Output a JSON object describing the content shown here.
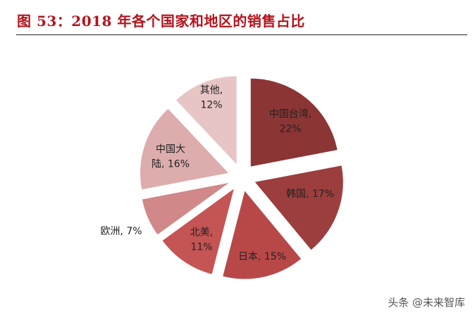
{
  "title": "图  53：2018 年各个国家和地区的销售占比",
  "watermark": "头条 @未来智库",
  "chart_data": {
    "type": "pie",
    "exploded": true,
    "start": "12 o'clock, clockwise",
    "unit": "%",
    "slices": [
      {
        "name": "中国台湾",
        "value": 22,
        "color": "#8b3535"
      },
      {
        "name": "韩国",
        "value": 17,
        "color": "#9c3e3e"
      },
      {
        "name": "日本",
        "value": 15,
        "color": "#b84848"
      },
      {
        "name": "北美",
        "value": 11,
        "color": "#c55454"
      },
      {
        "name": "欧洲",
        "value": 7,
        "color": "#d08888"
      },
      {
        "name": "中国大陆",
        "value": 16,
        "color": "#ddacac"
      },
      {
        "name": "其他",
        "value": 12,
        "color": "#e8c5c5"
      }
    ]
  }
}
